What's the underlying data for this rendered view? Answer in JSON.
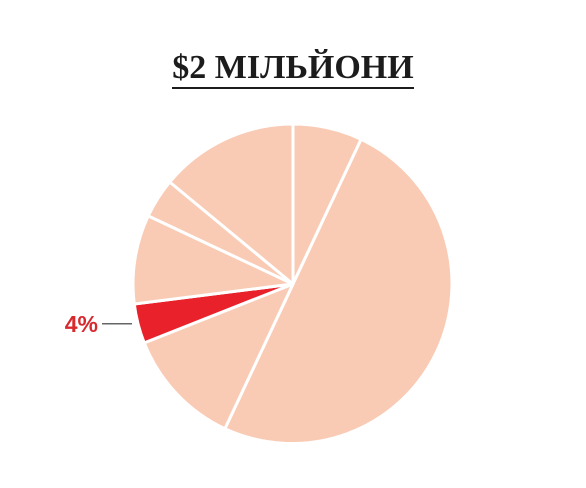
{
  "chart_data": {
    "type": "pie",
    "title": "$2 МІЛЬЙОНИ",
    "slices": [
      {
        "value": 7,
        "color": "#f9cbb5"
      },
      {
        "value": 50,
        "color": "#f9cbb5"
      },
      {
        "value": 12,
        "color": "#f9cbb5"
      },
      {
        "value": 4,
        "label": "4%",
        "color": "#e8212b"
      },
      {
        "value": 9,
        "color": "#f9cbb5"
      },
      {
        "value": 4,
        "color": "#f9cbb5"
      },
      {
        "value": 14,
        "color": "#f9cbb5"
      }
    ],
    "start_angle": "top",
    "direction": "clockwise",
    "label_color": "#d72a2f"
  }
}
